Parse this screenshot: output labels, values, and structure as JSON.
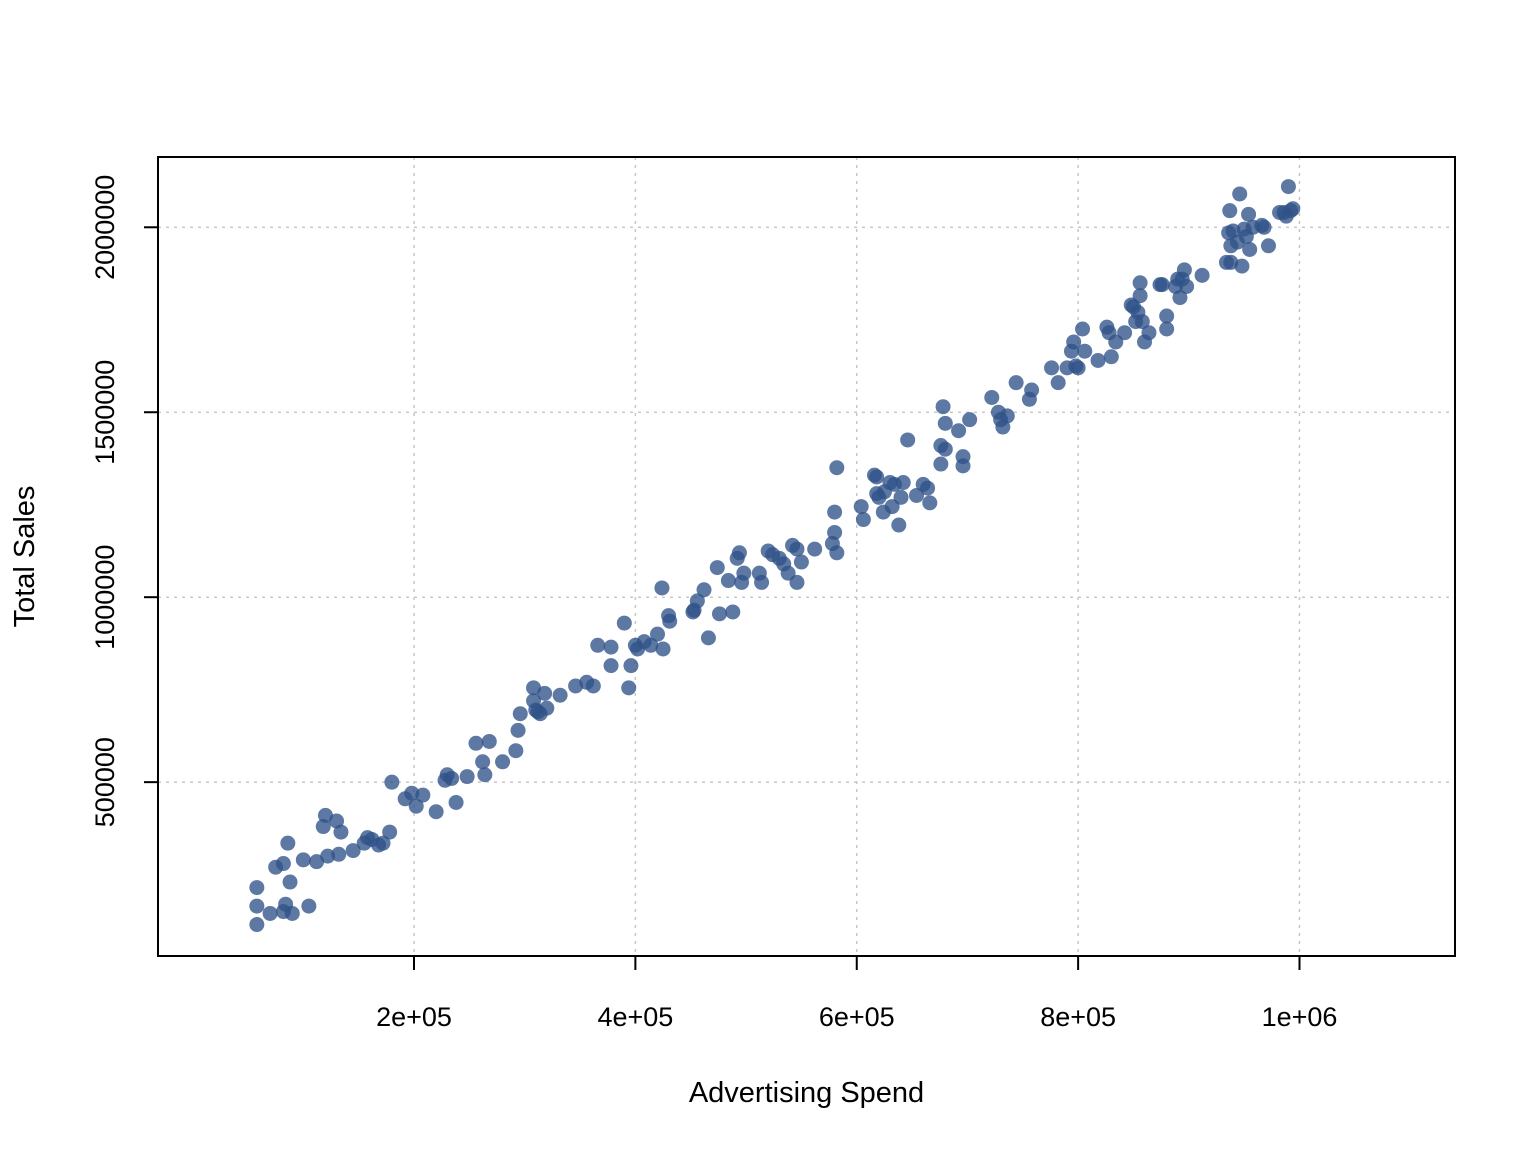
{
  "chart_data": {
    "type": "scatter",
    "title": "",
    "xlabel": "Advertising Spend",
    "ylabel": "Total Sales",
    "xlim": [
      60000,
      1000000
    ],
    "ylim": [
      110000,
      2110000
    ],
    "x_ticks": [
      200000,
      400000,
      600000,
      800000,
      1000000
    ],
    "x_tick_labels": [
      "2e+05",
      "4e+05",
      "6e+05",
      "8e+05",
      "1e+06"
    ],
    "y_ticks": [
      500000,
      1000000,
      1500000,
      2000000
    ],
    "y_tick_labels": [
      "500000",
      "1000000",
      "1500000",
      "2000000"
    ],
    "grid": true,
    "point_color": "#2f5288",
    "series": [
      {
        "points": [
          [
            58000,
            215000
          ],
          [
            58000,
            165000
          ],
          [
            58000,
            115000
          ],
          [
            70000,
            145000
          ],
          [
            75000,
            270000
          ],
          [
            82000,
            280000
          ],
          [
            84000,
            170000
          ],
          [
            82000,
            150000
          ],
          [
            86000,
            335000
          ],
          [
            88000,
            230000
          ],
          [
            90000,
            145000
          ],
          [
            100000,
            290000
          ],
          [
            105000,
            165000
          ],
          [
            112000,
            285000
          ],
          [
            118000,
            380000
          ],
          [
            120000,
            410000
          ],
          [
            122000,
            300000
          ],
          [
            130000,
            395000
          ],
          [
            132000,
            305000
          ],
          [
            134000,
            365000
          ],
          [
            145000,
            315000
          ],
          [
            155000,
            335000
          ],
          [
            158000,
            350000
          ],
          [
            162000,
            345000
          ],
          [
            168000,
            330000
          ],
          [
            172000,
            335000
          ],
          [
            178000,
            365000
          ],
          [
            180000,
            500000
          ],
          [
            192000,
            455000
          ],
          [
            198000,
            470000
          ],
          [
            202000,
            435000
          ],
          [
            208000,
            465000
          ],
          [
            220000,
            420000
          ],
          [
            228000,
            505000
          ],
          [
            230000,
            520000
          ],
          [
            234000,
            510000
          ],
          [
            238000,
            445000
          ],
          [
            248000,
            515000
          ],
          [
            256000,
            605000
          ],
          [
            262000,
            555000
          ],
          [
            264000,
            520000
          ],
          [
            268000,
            610000
          ],
          [
            280000,
            555000
          ],
          [
            292000,
            585000
          ],
          [
            294000,
            640000
          ],
          [
            296000,
            685000
          ],
          [
            308000,
            755000
          ],
          [
            308000,
            720000
          ],
          [
            310000,
            695000
          ],
          [
            312000,
            690000
          ],
          [
            314000,
            685000
          ],
          [
            318000,
            740000
          ],
          [
            320000,
            700000
          ],
          [
            332000,
            735000
          ],
          [
            346000,
            760000
          ],
          [
            356000,
            770000
          ],
          [
            362000,
            760000
          ],
          [
            366000,
            870000
          ],
          [
            378000,
            865000
          ],
          [
            378000,
            815000
          ],
          [
            390000,
            930000
          ],
          [
            394000,
            755000
          ],
          [
            396000,
            815000
          ],
          [
            400000,
            870000
          ],
          [
            402000,
            860000
          ],
          [
            408000,
            880000
          ],
          [
            414000,
            870000
          ],
          [
            420000,
            900000
          ],
          [
            424000,
            1025000
          ],
          [
            425000,
            860000
          ],
          [
            430000,
            950000
          ],
          [
            431000,
            935000
          ],
          [
            452000,
            960000
          ],
          [
            453000,
            965000
          ],
          [
            456000,
            990000
          ],
          [
            462000,
            1020000
          ],
          [
            466000,
            890000
          ],
          [
            474000,
            1080000
          ],
          [
            476000,
            955000
          ],
          [
            484000,
            1045000
          ],
          [
            488000,
            960000
          ],
          [
            492000,
            1105000
          ],
          [
            494000,
            1120000
          ],
          [
            496000,
            1040000
          ],
          [
            498000,
            1065000
          ],
          [
            512000,
            1065000
          ],
          [
            514000,
            1040000
          ],
          [
            520000,
            1125000
          ],
          [
            524000,
            1115000
          ],
          [
            530000,
            1105000
          ],
          [
            534000,
            1090000
          ],
          [
            538000,
            1065000
          ],
          [
            542000,
            1140000
          ],
          [
            546000,
            1130000
          ],
          [
            546000,
            1040000
          ],
          [
            550000,
            1095000
          ],
          [
            562000,
            1130000
          ],
          [
            578000,
            1145000
          ],
          [
            580000,
            1230000
          ],
          [
            580000,
            1175000
          ],
          [
            582000,
            1120000
          ],
          [
            582000,
            1350000
          ],
          [
            604000,
            1245000
          ],
          [
            606000,
            1210000
          ],
          [
            616000,
            1330000
          ],
          [
            618000,
            1325000
          ],
          [
            618000,
            1280000
          ],
          [
            620000,
            1270000
          ],
          [
            624000,
            1230000
          ],
          [
            625000,
            1285000
          ],
          [
            630000,
            1310000
          ],
          [
            632000,
            1245000
          ],
          [
            634000,
            1305000
          ],
          [
            638000,
            1195000
          ],
          [
            640000,
            1270000
          ],
          [
            642000,
            1310000
          ],
          [
            646000,
            1425000
          ],
          [
            654000,
            1275000
          ],
          [
            660000,
            1305000
          ],
          [
            664000,
            1295000
          ],
          [
            666000,
            1255000
          ],
          [
            676000,
            1410000
          ],
          [
            676000,
            1360000
          ],
          [
            678000,
            1515000
          ],
          [
            680000,
            1400000
          ],
          [
            680000,
            1470000
          ],
          [
            692000,
            1450000
          ],
          [
            696000,
            1380000
          ],
          [
            696000,
            1355000
          ],
          [
            702000,
            1480000
          ],
          [
            722000,
            1540000
          ],
          [
            728000,
            1500000
          ],
          [
            730000,
            1480000
          ],
          [
            732000,
            1460000
          ],
          [
            736000,
            1490000
          ],
          [
            744000,
            1580000
          ],
          [
            756000,
            1535000
          ],
          [
            758000,
            1560000
          ],
          [
            776000,
            1620000
          ],
          [
            782000,
            1580000
          ],
          [
            790000,
            1620000
          ],
          [
            794000,
            1665000
          ],
          [
            796000,
            1690000
          ],
          [
            798000,
            1625000
          ],
          [
            800000,
            1620000
          ],
          [
            804000,
            1725000
          ],
          [
            806000,
            1665000
          ],
          [
            818000,
            1640000
          ],
          [
            826000,
            1730000
          ],
          [
            828000,
            1715000
          ],
          [
            830000,
            1650000
          ],
          [
            834000,
            1690000
          ],
          [
            842000,
            1715000
          ],
          [
            848000,
            1790000
          ],
          [
            850000,
            1785000
          ],
          [
            852000,
            1745000
          ],
          [
            854000,
            1770000
          ],
          [
            856000,
            1850000
          ],
          [
            856000,
            1815000
          ],
          [
            858000,
            1745000
          ],
          [
            860000,
            1690000
          ],
          [
            864000,
            1715000
          ],
          [
            874000,
            1845000
          ],
          [
            876000,
            1845000
          ],
          [
            880000,
            1725000
          ],
          [
            880000,
            1760000
          ],
          [
            888000,
            1840000
          ],
          [
            890000,
            1860000
          ],
          [
            892000,
            1810000
          ],
          [
            894000,
            1860000
          ],
          [
            896000,
            1885000
          ],
          [
            898000,
            1840000
          ],
          [
            912000,
            1870000
          ],
          [
            934000,
            1905000
          ],
          [
            936000,
            1985000
          ],
          [
            937000,
            2045000
          ],
          [
            938000,
            1905000
          ],
          [
            938000,
            1950000
          ],
          [
            940000,
            1990000
          ],
          [
            944000,
            1960000
          ],
          [
            946000,
            2090000
          ],
          [
            948000,
            1895000
          ],
          [
            950000,
            1995000
          ],
          [
            952000,
            1975000
          ],
          [
            954000,
            2035000
          ],
          [
            955000,
            1940000
          ],
          [
            958000,
            2000000
          ],
          [
            966000,
            2005000
          ],
          [
            968000,
            2000000
          ],
          [
            972000,
            1950000
          ],
          [
            982000,
            2040000
          ],
          [
            986000,
            2040000
          ],
          [
            988000,
            2030000
          ],
          [
            990000,
            2110000
          ],
          [
            992000,
            2045000
          ],
          [
            994000,
            2050000
          ]
        ]
      }
    ]
  }
}
